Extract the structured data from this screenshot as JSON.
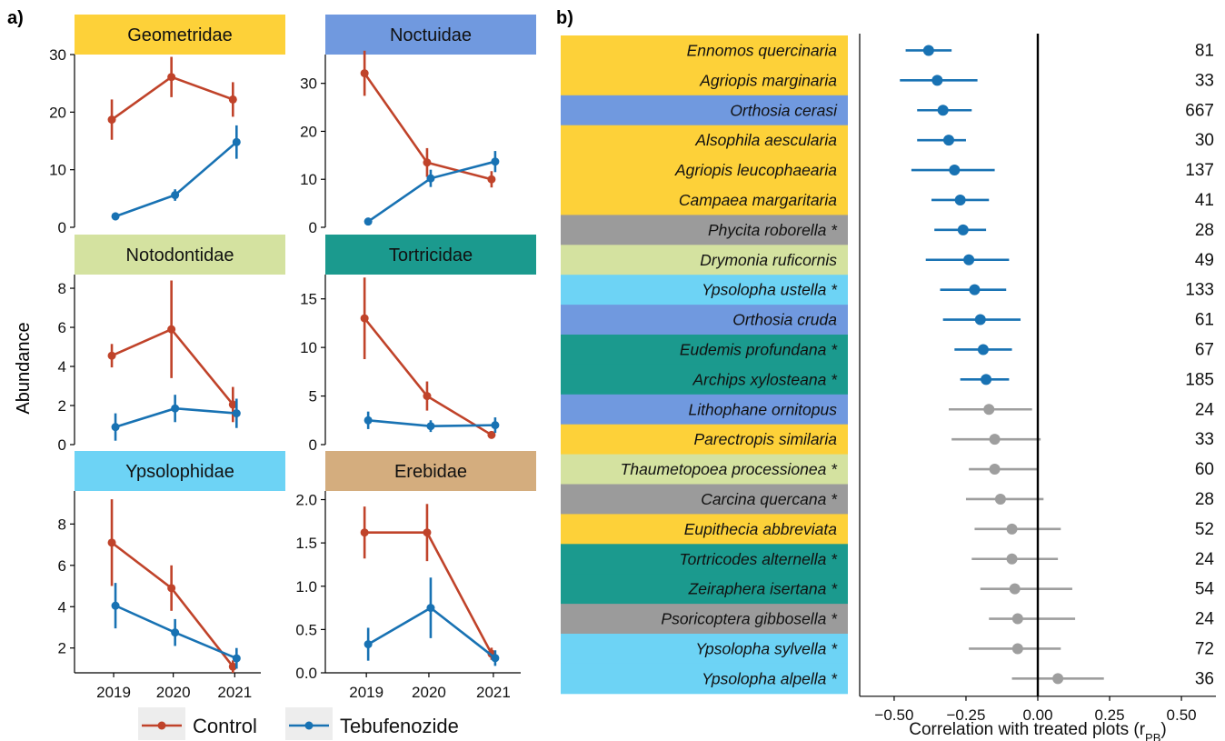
{
  "panel_a_label": "a)",
  "panel_b_label": "b)",
  "shared_ylabel": "Abundance",
  "legend": [
    {
      "name": "Control",
      "color": "#c0432a"
    },
    {
      "name": "Tebufenozide",
      "color": "#1872b3"
    }
  ],
  "colors": {
    "control": "#c0432a",
    "tebufenozide": "#1872b3",
    "significant": "#1872b3",
    "nonsignificant": "#9e9e9e",
    "Geometridae": "#fdd139",
    "Noctuidae": "#7099df",
    "Notodontidae": "#d4e2a0",
    "Tortricidae": "#1b9a8e",
    "Ypsolophidae": "#6dd3f5",
    "Erebidae": "#d4ad7e",
    "other": "#9b9b9b"
  },
  "chart_data": [
    {
      "type": "line",
      "title": "Geometridae",
      "categories": [
        "2019",
        "2020",
        "2021"
      ],
      "ylim": [
        0,
        30
      ],
      "yticks": [
        "0",
        "10",
        "20",
        "30"
      ],
      "series": [
        {
          "name": "Control",
          "values": [
            18.7,
            26.1,
            22.2
          ],
          "err": [
            3.5,
            3.5,
            3.0
          ]
        },
        {
          "name": "Tebufenozide",
          "values": [
            1.9,
            5.6,
            14.8
          ],
          "err": [
            0.7,
            1.0,
            2.9
          ]
        }
      ]
    },
    {
      "type": "line",
      "title": "Noctuidae",
      "categories": [
        "2019",
        "2020",
        "2021"
      ],
      "ylim": [
        0,
        36
      ],
      "yticks": [
        "0",
        "10",
        "20",
        "30"
      ],
      "series": [
        {
          "name": "Control",
          "values": [
            32.1,
            13.5,
            10.0
          ],
          "err": [
            4.7,
            3.0,
            1.7
          ]
        },
        {
          "name": "Tebufenozide",
          "values": [
            1.2,
            10.2,
            13.7
          ],
          "err": [
            0.3,
            1.8,
            2.2
          ]
        }
      ]
    },
    {
      "type": "line",
      "title": "Notodontidae",
      "categories": [
        "2019",
        "2020",
        "2021"
      ],
      "ylim": [
        0,
        8.7
      ],
      "yticks": [
        "0",
        "2",
        "4",
        "6",
        "8"
      ],
      "series": [
        {
          "name": "Control",
          "values": [
            4.55,
            5.9,
            2.05
          ],
          "err": [
            0.6,
            2.5,
            0.9
          ]
        },
        {
          "name": "Tebufenozide",
          "values": [
            0.9,
            1.85,
            1.6
          ],
          "err": [
            0.7,
            0.7,
            0.75
          ]
        }
      ]
    },
    {
      "type": "line",
      "title": "Tortricidae",
      "categories": [
        "2019",
        "2020",
        "2021"
      ],
      "ylim": [
        0,
        17.5
      ],
      "yticks": [
        "0",
        "5",
        "10",
        "15"
      ],
      "series": [
        {
          "name": "Control",
          "values": [
            13.0,
            5.0,
            1.0
          ],
          "err": [
            4.2,
            1.5,
            0.3
          ]
        },
        {
          "name": "Tebufenozide",
          "values": [
            2.5,
            1.9,
            2.0
          ],
          "err": [
            0.9,
            0.6,
            0.8
          ]
        }
      ]
    },
    {
      "type": "line",
      "title": "Ypsolophidae",
      "categories": [
        "2019",
        "2020",
        "2021"
      ],
      "ylim": [
        0.8,
        9.6
      ],
      "yticks": [
        "2",
        "4",
        "6",
        "8"
      ],
      "series": [
        {
          "name": "Control",
          "values": [
            7.1,
            4.9,
            1.1
          ],
          "err": [
            2.1,
            1.1,
            0.3
          ]
        },
        {
          "name": "Tebufenozide",
          "values": [
            4.05,
            2.75,
            1.5
          ],
          "err": [
            1.1,
            0.65,
            0.5
          ]
        }
      ]
    },
    {
      "type": "line",
      "title": "Erebidae",
      "categories": [
        "2019",
        "2020",
        "2021"
      ],
      "ylim": [
        0,
        2.1
      ],
      "yticks": [
        "0.0",
        "0.5",
        "1.0",
        "1.5",
        "2.0"
      ],
      "series": [
        {
          "name": "Control",
          "values": [
            1.62,
            1.62,
            0.22
          ],
          "err": [
            0.3,
            0.33,
            0.07
          ]
        },
        {
          "name": "Tebufenozide",
          "values": [
            0.33,
            0.75,
            0.17
          ],
          "err": [
            0.19,
            0.35,
            0.09
          ]
        }
      ]
    },
    {
      "type": "scatter",
      "xlabel": "Correlation with treated plots (r",
      "xlabel_sub": "PB",
      "xlabel_close": ")",
      "xlim": [
        -0.62,
        0.62
      ],
      "xticks": [
        -0.5,
        -0.25,
        0,
        0.25,
        0.5
      ],
      "xtick_labels": [
        "−0.50",
        "−0.25",
        "0.00",
        "0.25",
        "0.50"
      ],
      "rows": [
        {
          "species": "Ennomos quercinaria",
          "family": "Geometridae",
          "value": -0.38,
          "lo": -0.46,
          "hi": -0.3,
          "n": "81",
          "sig": true
        },
        {
          "species": "Agriopis marginaria",
          "family": "Geometridae",
          "value": -0.35,
          "lo": -0.48,
          "hi": -0.21,
          "n": "33",
          "sig": true
        },
        {
          "species": "Orthosia cerasi",
          "family": "Noctuidae",
          "value": -0.33,
          "lo": -0.42,
          "hi": -0.23,
          "n": "667",
          "sig": true
        },
        {
          "species": "Alsophila aescularia",
          "family": "Geometridae",
          "value": -0.31,
          "lo": -0.42,
          "hi": -0.25,
          "n": "30",
          "sig": true
        },
        {
          "species": "Agriopis leucophaearia",
          "family": "Geometridae",
          "value": -0.29,
          "lo": -0.44,
          "hi": -0.15,
          "n": "137",
          "sig": true
        },
        {
          "species": "Campaea margaritaria",
          "family": "Geometridae",
          "value": -0.27,
          "lo": -0.37,
          "hi": -0.17,
          "n": "41",
          "sig": true
        },
        {
          "species": "Phycita roborella *",
          "family": "other",
          "value": -0.26,
          "lo": -0.36,
          "hi": -0.18,
          "n": "28",
          "sig": true
        },
        {
          "species": "Drymonia ruficornis",
          "family": "Notodontidae",
          "value": -0.24,
          "lo": -0.39,
          "hi": -0.1,
          "n": "49",
          "sig": true
        },
        {
          "species": "Ypsolopha ustella *",
          "family": "Ypsolophidae",
          "value": -0.22,
          "lo": -0.34,
          "hi": -0.11,
          "n": "133",
          "sig": true
        },
        {
          "species": "Orthosia cruda",
          "family": "Noctuidae",
          "value": -0.2,
          "lo": -0.33,
          "hi": -0.06,
          "n": "61",
          "sig": true
        },
        {
          "species": "Eudemis profundana *",
          "family": "Tortricidae",
          "value": -0.19,
          "lo": -0.29,
          "hi": -0.09,
          "n": "67",
          "sig": true
        },
        {
          "species": "Archips xylosteana *",
          "family": "Tortricidae",
          "value": -0.18,
          "lo": -0.27,
          "hi": -0.1,
          "n": "185",
          "sig": true
        },
        {
          "species": "Lithophane ornitopus",
          "family": "Noctuidae",
          "value": -0.17,
          "lo": -0.31,
          "hi": -0.02,
          "n": "24",
          "sig": false
        },
        {
          "species": "Parectropis similaria",
          "family": "Geometridae",
          "value": -0.15,
          "lo": -0.3,
          "hi": 0.01,
          "n": "33",
          "sig": false
        },
        {
          "species": "Thaumetopoea processionea *",
          "family": "Notodontidae",
          "value": -0.15,
          "lo": -0.24,
          "hi": 0.0,
          "n": "60",
          "sig": false
        },
        {
          "species": "Carcina quercana *",
          "family": "other",
          "value": -0.13,
          "lo": -0.25,
          "hi": 0.02,
          "n": "28",
          "sig": false
        },
        {
          "species": "Eupithecia abbreviata",
          "family": "Geometridae",
          "value": -0.09,
          "lo": -0.22,
          "hi": 0.08,
          "n": "52",
          "sig": false
        },
        {
          "species": "Tortricodes alternella *",
          "family": "Tortricidae",
          "value": -0.09,
          "lo": -0.23,
          "hi": 0.07,
          "n": "24",
          "sig": false
        },
        {
          "species": "Zeiraphera isertana *",
          "family": "Tortricidae",
          "value": -0.08,
          "lo": -0.2,
          "hi": 0.12,
          "n": "54",
          "sig": false
        },
        {
          "species": "Psoricoptera gibbosella *",
          "family": "other",
          "value": -0.07,
          "lo": -0.17,
          "hi": 0.13,
          "n": "24",
          "sig": false
        },
        {
          "species": "Ypsolopha sylvella *",
          "family": "Ypsolophidae",
          "value": -0.07,
          "lo": -0.24,
          "hi": 0.08,
          "n": "72",
          "sig": false
        },
        {
          "species": "Ypsolopha alpella *",
          "family": "Ypsolophidae",
          "value": 0.07,
          "lo": -0.09,
          "hi": 0.23,
          "n": "36",
          "sig": false
        }
      ]
    }
  ]
}
